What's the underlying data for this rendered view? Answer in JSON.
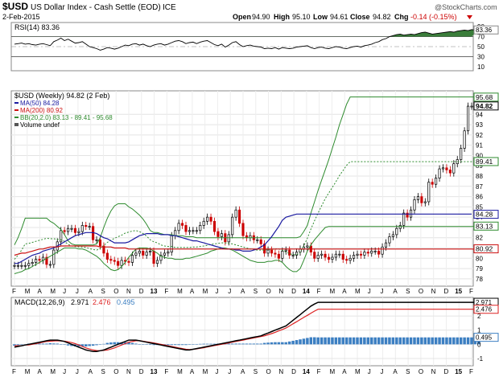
{
  "header": {
    "symbol": "$USD",
    "name": "US Dollar Index - Cash Settle (EOD)",
    "exchange": "ICE",
    "date": "2-Feb-2015",
    "open_label": "Open",
    "open": "94.90",
    "high_label": "High",
    "high": "95.10",
    "low_label": "Low",
    "low": "94.61",
    "close_label": "Close",
    "close": "94.82",
    "chg_label": "Chg",
    "chg": "-0.14 (-0.15%)",
    "brand": "@StockCharts.com"
  },
  "rsi": {
    "label": "RSI(14) 83.36",
    "value_tag": "83.36",
    "ticks": [
      "90",
      "70",
      "50",
      "30",
      "10"
    ]
  },
  "price": {
    "legend_title": "$USD (Weekly) 94.82 (2 Feb)",
    "legend": [
      "MA(50) 84.28",
      "MA(200) 80.92",
      "BB(20,2.0) 83.13 - 89.41 - 95.68",
      "Volume undef"
    ],
    "ticks": [
      "94",
      "93",
      "92",
      "91",
      "90",
      "89",
      "88",
      "87",
      "86",
      "85",
      "84",
      "83",
      "82",
      "81",
      "80",
      "79",
      "78"
    ],
    "tags": [
      "95.68",
      "94.82",
      "89.41",
      "84.28",
      "83.13",
      "80.92"
    ]
  },
  "macd": {
    "label_prefix": "MACD(12,26,9)",
    "v1": "2.971",
    "v2": "2.476",
    "v3": "0.495",
    "ticks": [
      "2",
      "1",
      "0",
      "-1"
    ],
    "tags": [
      "2.971",
      "2.476",
      "0.495"
    ]
  },
  "months": [
    "F",
    "M",
    "A",
    "M",
    "J",
    "J",
    "A",
    "S",
    "O",
    "N",
    "D",
    "13",
    "F",
    "M",
    "A",
    "M",
    "J",
    "J",
    "A",
    "S",
    "O",
    "N",
    "D",
    "14",
    "F",
    "M",
    "A",
    "M",
    "J",
    "J",
    "A",
    "S",
    "O",
    "N",
    "D",
    "15",
    "F"
  ],
  "colors": {
    "up": "#000000",
    "down": "#cc0000",
    "ma50": "#1a1aa0",
    "ma200": "#cc1111",
    "bb": "#2e8b2e",
    "macd": "#000000",
    "signal": "#dd2222",
    "hist": "#3c7fc2"
  },
  "chart_data": {
    "type": "candlestick",
    "interval": "weekly",
    "x_start": "2012-01-30",
    "x_end": "2015-02-02",
    "ylim": [
      77.6,
      95.9
    ],
    "close": [
      79.3,
      79.3,
      79.3,
      79.3,
      79.5,
      79.6,
      79.9,
      79.8,
      80.1,
      79.4,
      79.4,
      80.8,
      81.6,
      82.7,
      82.6,
      82.9,
      82.9,
      82.5,
      82.6,
      83.2,
      83.1,
      83.1,
      81.8,
      81.8,
      81.2,
      80.5,
      79.9,
      79.8,
      79.7,
      79.3,
      79.8,
      79.7,
      79.6,
      80.3,
      80.5,
      80.7,
      80.3,
      80.6,
      80.7,
      79.5,
      79.8,
      80.3,
      80.5,
      80.6,
      82.2,
      82.7,
      83.4,
      83.2,
      82.6,
      82.7,
      82.7,
      82.7,
      83.2,
      83.6,
      84.0,
      83.6,
      82.6,
      82.1,
      82.4,
      81.6,
      82.3,
      84.0,
      84.7,
      83.4,
      82.2,
      82.0,
      82.2,
      81.8,
      81.8,
      81.4,
      80.5,
      80.8,
      80.5,
      80.4,
      80.0,
      80.7,
      80.8,
      80.3,
      80.3,
      80.6,
      80.9,
      81.1,
      81.2,
      80.6,
      80.0,
      80.3,
      80.4,
      80.1,
      79.9,
      80.1,
      80.4,
      80.4,
      79.9,
      79.8,
      80.0,
      80.3,
      80.4,
      80.3,
      80.6,
      80.5,
      80.7,
      80.7,
      80.4,
      81.1,
      81.5,
      82.1,
      82.3,
      82.9,
      83.2,
      84.4,
      84.0,
      84.7,
      85.7,
      86.0,
      85.4,
      85.5,
      87.4,
      87.2,
      87.8,
      88.7,
      88.8,
      88.6,
      88.3,
      89.2,
      89.6,
      90.7,
      92.4,
      94.8,
      94.8
    ],
    "ma50": [
      79.5,
      79.5,
      79.7,
      79.9,
      80.1,
      80.3,
      80.4,
      80.5,
      80.7,
      80.8,
      80.9,
      81.0,
      81.2,
      81.4,
      81.6,
      81.8,
      82.0,
      82.2,
      82.3,
      82.4,
      82.5,
      82.5,
      82.5,
      82.4,
      82.2,
      82.0,
      81.9,
      81.7,
      81.5,
      81.5,
      81.5,
      81.5,
      81.6,
      81.8,
      82.0,
      82.2,
      82.3,
      82.4,
      82.4,
      82.4,
      82.4,
      82.3,
      82.3,
      82.3,
      82.2,
      82.2,
      82.1,
      82.0,
      81.9,
      81.8,
      81.7,
      81.7,
      81.6,
      81.5,
      81.4,
      81.3,
      81.2,
      81.1,
      81.0,
      80.9,
      80.9,
      80.9,
      80.8,
      80.8,
      80.7,
      80.7,
      80.7,
      80.8,
      80.9,
      81.1,
      81.3,
      81.7,
      82.1,
      82.6,
      83.1,
      83.7,
      84.0,
      84.1,
      84.2,
      84.3,
      84.3,
      84.3,
      84.3,
      84.3,
      84.3,
      84.3,
      84.3,
      84.3,
      84.3,
      84.3,
      84.3,
      84.3,
      84.3,
      84.3,
      84.3,
      84.3,
      84.3,
      84.3,
      84.3,
      84.3,
      84.3,
      84.3,
      84.3,
      84.3,
      84.3,
      84.3,
      84.3,
      84.3,
      84.3,
      84.3,
      84.3,
      84.3,
      84.3,
      84.3,
      84.3,
      84.3,
      84.3,
      84.3,
      84.3,
      84.3,
      84.3,
      84.3,
      84.3,
      84.3,
      84.3,
      84.3,
      84.3,
      84.3,
      84.3
    ],
    "ma200": [
      80.3,
      80.4,
      80.5,
      80.5,
      80.6,
      80.7,
      80.8,
      80.9,
      80.9,
      81.0,
      81.1,
      81.1,
      81.1,
      81.2,
      81.2,
      81.2,
      81.2,
      81.2,
      81.2,
      81.2,
      81.2,
      81.2,
      81.2,
      81.2,
      81.1,
      81.1,
      81.1,
      81.1,
      81.0,
      81.0,
      81.0,
      81.0,
      80.9,
      80.9,
      80.9,
      80.9,
      80.9,
      80.9,
      80.9,
      80.9,
      80.9,
      80.9,
      80.9,
      80.9,
      80.9,
      80.9,
      80.9,
      80.9,
      80.9,
      80.9,
      80.9,
      80.9,
      80.9,
      80.9,
      80.9,
      80.9,
      80.9,
      80.9,
      80.9,
      80.9,
      80.9,
      80.9,
      80.9,
      80.9,
      80.9,
      80.9,
      80.9,
      80.9,
      80.9,
      80.9,
      80.9,
      80.9,
      80.9,
      80.9,
      80.9,
      80.9,
      80.9,
      80.9,
      80.9,
      80.9,
      80.9,
      80.9,
      80.9,
      80.9,
      80.9,
      80.9,
      80.9,
      80.9,
      80.9,
      80.9,
      80.9,
      80.9,
      80.9,
      80.9,
      80.9,
      80.9,
      80.9,
      80.9,
      80.9,
      80.9,
      80.9,
      80.9,
      80.9,
      80.9,
      80.9,
      80.9,
      80.9,
      80.9,
      80.9,
      80.9,
      80.9,
      80.9,
      80.9,
      80.9,
      80.9,
      80.9,
      80.9,
      80.9,
      80.9,
      80.9,
      80.9,
      80.9,
      80.9,
      80.9,
      80.9,
      80.9,
      80.9,
      80.9,
      80.9,
      80.9,
      80.9
    ],
    "bb_upper": [
      81.3,
      82.0,
      82.9,
      83.9,
      83.9,
      83.9,
      83.9,
      83.9,
      83.9,
      83.9,
      83.6,
      83.4,
      83.1,
      82.8,
      82.3,
      81.7,
      81.4,
      81.3,
      81.3,
      81.3,
      81.3,
      81.3,
      81.3,
      81.4,
      82.0,
      83.0,
      83.9,
      84.6,
      85.1,
      85.3,
      85.3,
      85.3,
      85.0,
      84.8,
      84.5,
      84.2,
      83.8,
      83.3,
      82.7,
      82.5,
      82.5,
      82.4,
      82.3,
      82.3,
      82.3,
      82.2,
      82.2,
      82.2,
      82.1,
      82.1,
      82.1,
      82.0,
      82.0,
      82.0,
      82.0,
      82.0,
      82.0,
      82.0,
      82.0,
      82.0,
      82.0,
      82.0,
      82.0,
      82.0,
      82.0,
      82.0,
      82.0,
      82.0,
      82.0,
      82.0,
      82.0,
      82.0,
      82.0,
      82.0,
      82.0,
      82.0,
      82.0,
      82.0,
      82.0,
      82.0,
      82.1,
      82.6,
      83.2,
      84.4,
      85.5,
      86.6,
      87.6,
      88.6,
      89.6,
      90.7,
      91.8,
      93.0,
      94.0,
      95.0,
      95.7,
      95.7,
      95.7,
      95.7,
      95.7,
      95.7,
      95.7,
      95.7,
      95.7,
      95.7,
      95.7,
      95.7,
      95.7,
      95.7,
      95.7,
      95.7,
      95.7,
      95.7,
      95.7,
      95.7,
      95.7,
      95.7,
      95.7,
      95.7,
      95.7,
      95.7,
      95.7,
      95.7,
      95.7,
      95.7,
      95.7,
      95.7,
      95.7,
      95.7,
      95.7,
      95.7,
      95.7
    ],
    "bb_lower": [
      78.5,
      78.6,
      78.7,
      78.9,
      79.0,
      79.2,
      79.4,
      79.6,
      79.8,
      80.0,
      80.2,
      80.4,
      80.6,
      80.8,
      81.0,
      81.0,
      81.0,
      81.0,
      80.9,
      80.9,
      80.8,
      80.6,
      80.4,
      80.2,
      79.9,
      79.5,
      79.2,
      78.9,
      78.8,
      78.9,
      79.2,
      79.6,
      80.1,
      80.5,
      80.9,
      81.0,
      81.0,
      81.0,
      80.9,
      80.7,
      80.5,
      80.2,
      80.1,
      80.0,
      80.0,
      79.9,
      79.9,
      79.9,
      80.0,
      80.0,
      80.1,
      80.2,
      80.3,
      80.4,
      80.5,
      80.7,
      80.8,
      80.9,
      81.0,
      81.0,
      80.9,
      80.8,
      80.6,
      80.4,
      80.2,
      80.0,
      79.8,
      79.7,
      79.6,
      79.6,
      79.6,
      79.7,
      79.7,
      79.8,
      79.8,
      79.6,
      79.2,
      78.9,
      78.7,
      78.7,
      79.0,
      79.8,
      80.7,
      81.3,
      81.8,
      82.2,
      82.6,
      83.0,
      83.1,
      83.1,
      83.1,
      83.1,
      83.1,
      83.1,
      83.1,
      83.1,
      83.1,
      83.1,
      83.1,
      83.1,
      83.1,
      83.1,
      83.1,
      83.1,
      83.1,
      83.1,
      83.1,
      83.1,
      83.1,
      83.1,
      83.1,
      83.1,
      83.1,
      83.1,
      83.1,
      83.1,
      83.1,
      83.1,
      83.1,
      83.1,
      83.1,
      83.1,
      83.1,
      83.1,
      83.1,
      83.1,
      83.1,
      83.1,
      83.1,
      83.1,
      83.1
    ],
    "rsi_14": [
      55,
      56,
      57,
      55,
      56,
      54,
      53,
      55,
      56,
      54,
      52,
      60,
      63,
      67,
      62,
      65,
      61,
      57,
      58,
      60,
      55,
      50,
      48,
      46,
      43,
      45,
      48,
      47,
      45,
      47,
      50,
      53,
      52,
      55,
      56,
      53,
      55,
      52,
      50,
      53,
      55,
      56,
      53,
      55,
      58,
      61,
      62,
      60,
      56,
      58,
      59,
      56,
      59,
      61,
      62,
      58,
      54,
      52,
      55,
      49,
      53,
      58,
      60,
      54,
      50,
      52,
      53,
      51,
      50,
      49,
      46,
      47,
      46,
      48,
      45,
      48,
      47,
      46,
      47,
      49,
      50,
      51,
      52,
      48,
      46,
      48,
      49,
      47,
      46,
      48,
      50,
      49,
      47,
      46,
      48,
      50,
      51,
      49,
      52,
      53,
      55,
      58,
      60,
      64,
      66,
      70,
      72,
      74,
      75,
      73,
      74,
      75,
      74,
      76,
      78,
      79,
      77,
      75,
      76,
      77,
      78,
      79,
      80,
      79,
      81,
      82,
      83,
      82,
      84,
      83,
      83
    ],
    "macd_line": [
      -0.2,
      -0.15,
      -0.1,
      -0.05,
      0,
      0.05,
      0.1,
      0.15,
      0.2,
      0.25,
      0.3,
      0.3,
      0.3,
      0.25,
      0.2,
      0.1,
      0,
      -0.1,
      -0.2,
      -0.3,
      -0.4,
      -0.45,
      -0.5,
      -0.5,
      -0.45,
      -0.4,
      -0.3,
      -0.2,
      -0.1,
      0,
      0.1,
      0.2,
      0.3,
      0.3,
      0.3,
      0.25,
      0.2,
      0.15,
      0.1,
      0.05,
      0,
      -0.05,
      -0.1,
      -0.15,
      -0.2,
      -0.25,
      -0.3,
      -0.35,
      -0.4,
      -0.4,
      -0.35,
      -0.3,
      -0.25,
      -0.2,
      -0.15,
      -0.1,
      -0.05,
      0,
      0.05,
      0.1,
      0.15,
      0.2,
      0.25,
      0.3,
      0.35,
      0.4,
      0.45,
      0.5,
      0.55,
      0.6,
      0.7,
      0.8,
      0.9,
      1.0,
      1.1,
      1.2,
      1.3,
      1.5,
      1.7,
      1.9,
      2.1,
      2.3,
      2.5,
      2.7,
      2.85,
      2.97,
      2.97,
      2.97,
      2.97,
      2.97,
      2.97,
      2.97,
      2.97,
      2.97,
      2.97,
      2.97,
      2.97,
      2.97,
      2.97,
      2.97,
      2.97,
      2.97,
      2.97,
      2.97,
      2.97,
      2.97,
      2.97,
      2.97,
      2.97,
      2.97,
      2.97,
      2.97,
      2.97,
      2.97,
      2.97,
      2.97,
      2.97,
      2.97,
      2.97,
      2.97,
      2.97,
      2.97,
      2.97,
      2.97,
      2.97,
      2.97,
      2.97,
      2.97,
      2.97,
      2.97,
      2.97
    ],
    "signal_line": [
      -0.1,
      -0.1,
      -0.1,
      -0.05,
      -0.05,
      0,
      0.05,
      0.1,
      0.15,
      0.2,
      0.22,
      0.24,
      0.25,
      0.24,
      0.22,
      0.18,
      0.12,
      0.05,
      -0.05,
      -0.15,
      -0.25,
      -0.33,
      -0.4,
      -0.44,
      -0.45,
      -0.43,
      -0.4,
      -0.33,
      -0.25,
      -0.15,
      -0.05,
      0.05,
      0.15,
      0.2,
      0.25,
      0.25,
      0.22,
      0.18,
      0.14,
      0.1,
      0.05,
      0,
      -0.05,
      -0.1,
      -0.15,
      -0.2,
      -0.25,
      -0.3,
      -0.35,
      -0.37,
      -0.35,
      -0.32,
      -0.28,
      -0.24,
      -0.19,
      -0.14,
      -0.09,
      -0.05,
      0,
      0.05,
      0.1,
      0.15,
      0.2,
      0.25,
      0.3,
      0.35,
      0.4,
      0.45,
      0.5,
      0.55,
      0.6,
      0.68,
      0.76,
      0.85,
      0.95,
      1.05,
      1.15,
      1.3,
      1.45,
      1.6,
      1.75,
      1.9,
      2.05,
      2.2,
      2.35,
      2.48,
      2.48,
      2.48,
      2.48,
      2.48,
      2.48,
      2.48,
      2.48,
      2.48,
      2.48,
      2.48,
      2.48,
      2.48,
      2.48,
      2.48,
      2.48,
      2.48,
      2.48,
      2.48,
      2.48,
      2.48,
      2.48,
      2.48,
      2.48,
      2.48,
      2.48,
      2.48,
      2.48,
      2.48,
      2.48,
      2.48,
      2.48,
      2.48,
      2.48,
      2.48,
      2.48,
      2.48,
      2.48,
      2.48,
      2.48,
      2.48,
      2.48,
      2.48,
      2.48,
      2.48,
      2.48
    ]
  }
}
